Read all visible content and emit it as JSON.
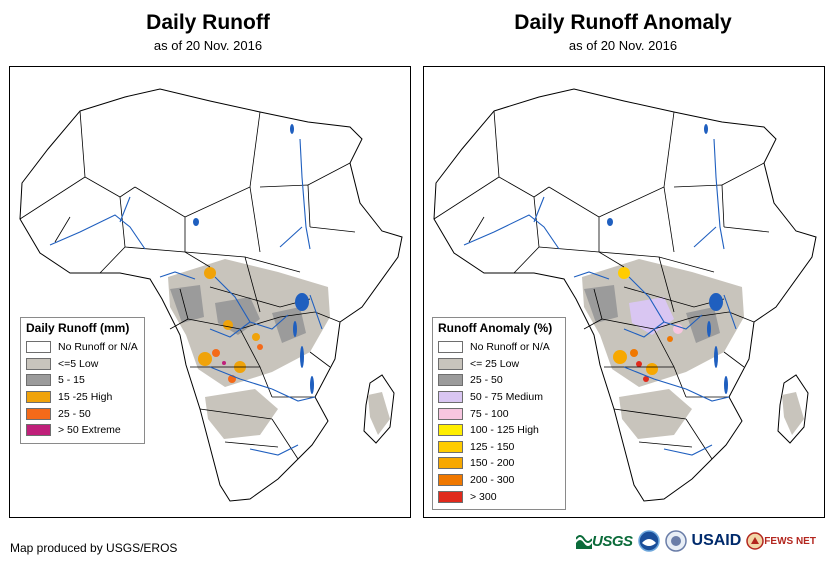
{
  "left": {
    "title": "Daily Runoff",
    "subtitle": "as of 20 Nov. 2016",
    "legend": {
      "title": "Daily Runoff (mm)",
      "items": [
        {
          "label": "No Runoff or N/A",
          "color": "#ffffff"
        },
        {
          "label": "<=5 Low",
          "color": "#c8c4bc"
        },
        {
          "label": "5 - 15",
          "color": "#9b9b9b"
        },
        {
          "label": "15 -25 High",
          "color": "#f0a30a"
        },
        {
          "label": "25 - 50",
          "color": "#f46a19"
        },
        {
          "label": "> 50 Extreme",
          "color": "#c0207a"
        }
      ]
    }
  },
  "right": {
    "title": "Daily Runoff Anomaly",
    "subtitle": "as of 20 Nov. 2016",
    "legend": {
      "title": "Runoff Anomaly (%)",
      "items": [
        {
          "label": "No Runoff or N/A",
          "color": "#ffffff"
        },
        {
          "label": "<= 25 Low",
          "color": "#c8c4bc"
        },
        {
          "label": "25 - 50",
          "color": "#9b9b9b"
        },
        {
          "label": "50 - 75 Medium",
          "color": "#d9c6f2"
        },
        {
          "label": "75 - 100",
          "color": "#f7c6e0"
        },
        {
          "label": "100 - 125 High",
          "color": "#ffee00"
        },
        {
          "label": "125 - 150",
          "color": "#ffcc00"
        },
        {
          "label": "150 - 200",
          "color": "#f7a800"
        },
        {
          "label": "200 - 300",
          "color": "#f07800"
        },
        {
          "label": "> 300",
          "color": "#e02a1c"
        }
      ]
    }
  },
  "credit": "Map produced by USGS/EROS",
  "logos": {
    "usgs": "USGS",
    "usaid": "USAID",
    "fews": "FEWS NET"
  },
  "colors": {
    "river": "#1f5fbf",
    "lake": "#1f5fbf",
    "border": "#000000"
  }
}
